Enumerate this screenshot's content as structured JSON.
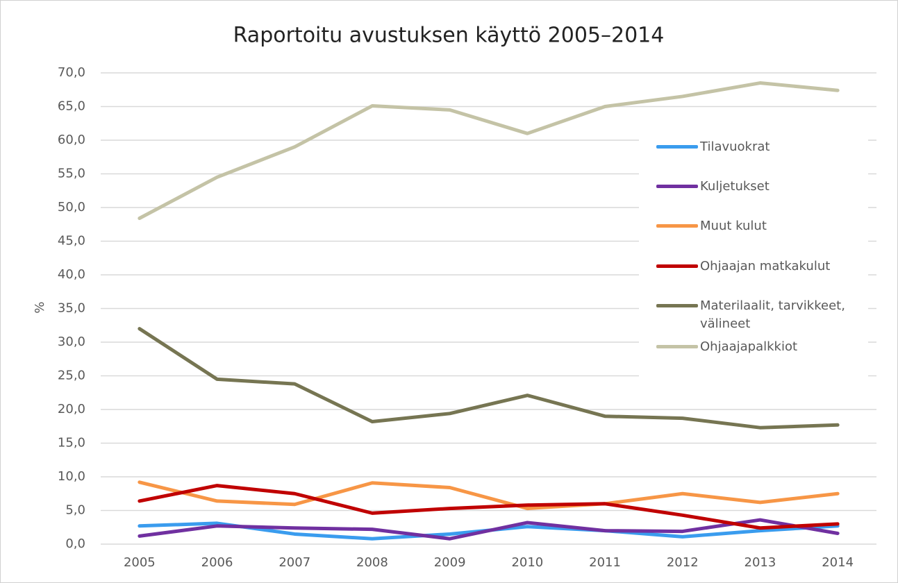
{
  "chart_data": {
    "type": "line",
    "title": "Raportoitu avustuksen käyttö 2005–2014",
    "ylabel": "%",
    "categories": [
      "2005",
      "2006",
      "2007",
      "2008",
      "2009",
      "2010",
      "2011",
      "2012",
      "2013",
      "2014"
    ],
    "ylim": [
      0,
      70
    ],
    "yticks": [
      {
        "value": 0,
        "label": "0,0"
      },
      {
        "value": 5,
        "label": "5,0"
      },
      {
        "value": 10,
        "label": "10,0"
      },
      {
        "value": 15,
        "label": "15,0"
      },
      {
        "value": 20,
        "label": "20,0"
      },
      {
        "value": 25,
        "label": "25,0"
      },
      {
        "value": 30,
        "label": "30,0"
      },
      {
        "value": 35,
        "label": "35,0"
      },
      {
        "value": 40,
        "label": "40,0"
      },
      {
        "value": 45,
        "label": "45,0"
      },
      {
        "value": 50,
        "label": "50,0"
      },
      {
        "value": 55,
        "label": "55,0"
      },
      {
        "value": 60,
        "label": "60,0"
      },
      {
        "value": 65,
        "label": "65,0"
      },
      {
        "value": 70,
        "label": "70,0"
      }
    ],
    "grid": true,
    "legend": "right",
    "series": [
      {
        "name": "Tilavuokrat",
        "color": "#3a9cee",
        "values": [
          2.7,
          3.1,
          1.5,
          0.8,
          1.5,
          2.6,
          2.0,
          1.1,
          2.0,
          2.7
        ]
      },
      {
        "name": "Kuljetukset",
        "color": "#7030a0",
        "values": [
          1.2,
          2.7,
          2.4,
          2.2,
          0.8,
          3.2,
          2.0,
          1.9,
          3.6,
          1.6
        ]
      },
      {
        "name": "Muut kulut",
        "color": "#f79646",
        "values": [
          9.2,
          6.4,
          5.9,
          9.1,
          8.4,
          5.3,
          6.0,
          7.5,
          6.2,
          7.5
        ]
      },
      {
        "name": "Ohjaajan matkakulut",
        "color": "#c00000",
        "values": [
          6.4,
          8.7,
          7.5,
          4.6,
          5.3,
          5.8,
          6.0,
          4.3,
          2.4,
          3.0
        ]
      },
      {
        "name": "Materilaalit, tarvikkeet, välineet",
        "color": "#767552",
        "values": [
          32.0,
          24.5,
          23.8,
          18.2,
          19.4,
          22.1,
          19.0,
          18.7,
          17.3,
          17.7
        ]
      },
      {
        "name": "Ohjaajapalkkiot",
        "color": "#c4c3a6",
        "values": [
          48.4,
          54.5,
          59.0,
          65.1,
          64.5,
          61.0,
          65.0,
          66.5,
          68.5,
          67.4
        ]
      }
    ]
  }
}
